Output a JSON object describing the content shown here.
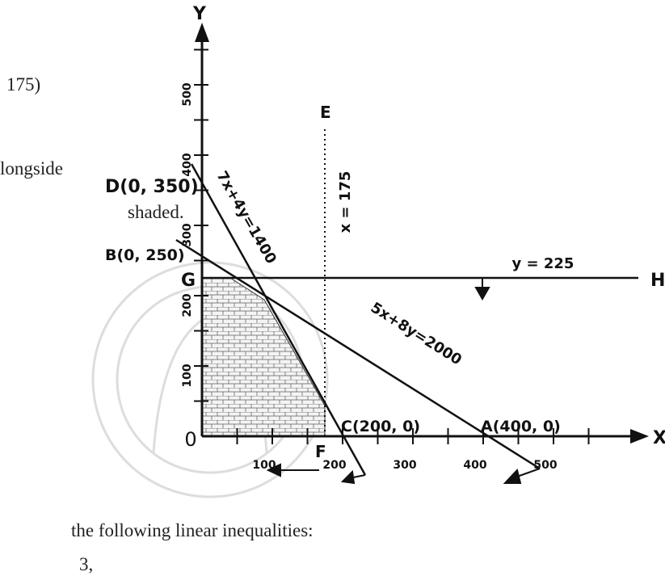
{
  "page_text": {
    "fragment_1": "175)",
    "fragment_2": "longside",
    "fragment_3": "shaded.",
    "fragment_4": "the following linear inequalities:",
    "fragment_5": "3,"
  },
  "diagram": {
    "axis_labels": {
      "x": "X",
      "y": "Y",
      "origin": "0"
    },
    "x_ticks": [
      "100",
      "200",
      "300",
      "400",
      "500"
    ],
    "y_ticks": [
      "100",
      "200",
      "300",
      "400",
      "500"
    ],
    "points": {
      "D": "D(0, 350)",
      "B": "B(0, 250)",
      "C": "C(200, 0)",
      "A": "A(400, 0)",
      "E": "E",
      "F": "F",
      "G": "G",
      "H": "H"
    },
    "lines": {
      "line_1": "7x+4y=1400",
      "line_2": "5x+8y=2000",
      "line_3": "x = 175",
      "line_4": "y = 225"
    }
  }
}
